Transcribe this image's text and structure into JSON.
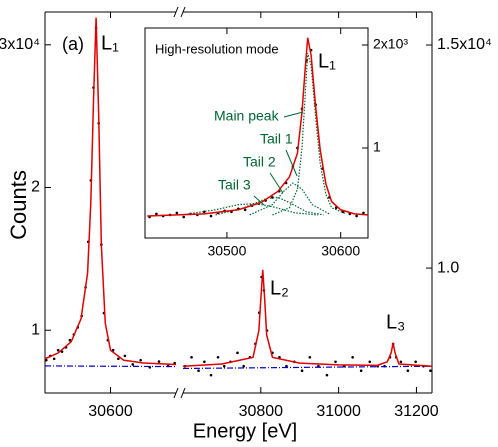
{
  "chart_data": [
    {
      "type": "line",
      "label": "(a)",
      "peak_labels": [
        "L₁",
        "L₂",
        "L₃"
      ],
      "xlabel": "Energy [eV]",
      "ylabel": "Counts",
      "panels": [
        {
          "xlim": [
            30500,
            30700
          ],
          "xticks": [
            30600
          ],
          "ylim": [
            0.56,
            3.23
          ],
          "yticks": [
            1,
            2,
            {
              "value": 3,
              "label": "3x10⁴"
            }
          ],
          "series": [
            {
              "style": "points",
              "color": "#000000",
              "x": [
                30502,
                30508,
                30514,
                30520,
                30526,
                30532,
                30538,
                30544,
                30550,
                30556,
                30562,
                30566,
                30570,
                30574,
                30578,
                30582,
                30586,
                30590,
                30596,
                30604,
                30612,
                30622,
                30634,
                30646,
                30660,
                30674,
                30688,
                30698
              ],
              "values": [
                0.79,
                0.82,
                0.8,
                0.86,
                0.85,
                0.88,
                0.93,
                0.97,
                1.02,
                1.1,
                1.3,
                1.62,
                2.05,
                2.7,
                3.12,
                2.45,
                1.6,
                1.12,
                0.93,
                0.86,
                0.8,
                0.82,
                0.76,
                0.79,
                0.74,
                0.78,
                0.75,
                0.77
              ]
            },
            {
              "style": "dashdot",
              "color": "#0000cc",
              "x": [
                30500,
                30700
              ],
              "values": [
                0.75,
                0.745
              ]
            },
            {
              "style": "solid",
              "color": "#e00000",
              "x": [
                30500,
                30520,
                30540,
                30555,
                30565,
                30570,
                30574,
                30578,
                30582,
                30586,
                30592,
                30600,
                30620,
                30650,
                30700
              ],
              "values": [
                0.8,
                0.84,
                0.92,
                1.08,
                1.4,
                1.9,
                2.6,
                3.19,
                2.5,
                1.6,
                1.05,
                0.86,
                0.79,
                0.77,
                0.76
              ]
            }
          ]
        },
        {
          "xlim": [
            30600,
            31240
          ],
          "xticks": [
            30800,
            31000,
            31200
          ],
          "ylim": [
            0.72,
            1.574
          ],
          "yticks": [
            {
              "value": 1.0,
              "label": "1.0"
            },
            {
              "value": 1.5,
              "label": "1.5x10⁴"
            }
          ],
          "series": [
            {
              "style": "points",
              "color": "#000000",
              "x": [
                30605,
                30622,
                30640,
                30655,
                30672,
                30690,
                30706,
                30722,
                30740,
                30756,
                30772,
                30786,
                30796,
                30802,
                30808,
                30816,
                30830,
                30848,
                30866,
                30886,
                30906,
                30926,
                30948,
                30970,
                30992,
                31014,
                31036,
                31058,
                31080,
                31100,
                31118,
                31132,
                31140,
                31148,
                31160,
                31178,
                31198,
                31218,
                31236
              ],
              "values": [
                0.78,
                0.8,
                0.77,
                0.79,
                0.76,
                0.8,
                0.78,
                0.79,
                0.81,
                0.78,
                0.8,
                0.83,
                0.9,
                0.98,
                0.95,
                0.86,
                0.81,
                0.8,
                0.78,
                0.79,
                0.77,
                0.8,
                0.78,
                0.76,
                0.79,
                0.78,
                0.8,
                0.77,
                0.79,
                0.78,
                0.78,
                0.8,
                0.83,
                0.8,
                0.79,
                0.77,
                0.79,
                0.78,
                0.77
              ]
            },
            {
              "style": "dashdot",
              "color": "#0000cc",
              "x": [
                30600,
                31240
              ],
              "values": [
                0.775,
                0.78
              ]
            },
            {
              "style": "solid",
              "color": "#e00000",
              "x": [
                30600,
                30700,
                30780,
                30795,
                30800,
                30805,
                30810,
                30815,
                30830,
                30900,
                31000,
                31100,
                31125,
                31135,
                31140,
                31145,
                31155,
                31240
              ],
              "values": [
                0.78,
                0.785,
                0.8,
                0.86,
                0.93,
                0.996,
                0.93,
                0.85,
                0.8,
                0.787,
                0.783,
                0.782,
                0.79,
                0.81,
                0.832,
                0.81,
                0.785,
                0.78
              ]
            }
          ]
        }
      ]
    },
    {
      "type": "line",
      "title": "High-resolution mode",
      "peak_label": "L₁",
      "annotations": [
        "Main peak",
        "Tail 1",
        "Tail 2",
        "Tail 3"
      ],
      "xlim": [
        30428,
        30624
      ],
      "xticks": [
        30500,
        30600
      ],
      "ylim": [
        0.126,
        2.165
      ],
      "yticks": [
        1,
        {
          "value": 2,
          "label": "2x10³"
        }
      ],
      "series": [
        {
          "style": "points",
          "color": "#000000",
          "x": [
            30432,
            30438,
            30444,
            30450,
            30456,
            30462,
            30468,
            30474,
            30480,
            30486,
            30492,
            30498,
            30504,
            30510,
            30516,
            30522,
            30528,
            30534,
            30540,
            30546,
            30552,
            30558,
            30562,
            30566,
            30570,
            30574,
            30578,
            30584,
            30590,
            30596,
            30602,
            30608,
            30614,
            30620
          ],
          "values": [
            0.33,
            0.36,
            0.34,
            0.35,
            0.37,
            0.33,
            0.36,
            0.35,
            0.38,
            0.34,
            0.37,
            0.39,
            0.38,
            0.41,
            0.4,
            0.44,
            0.46,
            0.49,
            0.52,
            0.58,
            0.66,
            0.82,
            1.0,
            1.38,
            1.85,
            1.95,
            1.42,
            0.8,
            0.52,
            0.42,
            0.38,
            0.36,
            0.34,
            0.37
          ]
        },
        {
          "style": "dotted",
          "color": "#006633",
          "x": [
            30540,
            30555,
            30562,
            30566,
            30569,
            30571,
            30574,
            30578,
            30582,
            30587,
            30592,
            30605
          ],
          "values": [
            0.35,
            0.42,
            0.6,
            1.0,
            1.55,
            1.92,
            1.8,
            1.3,
            0.85,
            0.55,
            0.42,
            0.36
          ]
        },
        {
          "style": "dotted",
          "color": "#006633",
          "x": [
            30520,
            30540,
            30550,
            30558,
            30566,
            30575,
            30590
          ],
          "values": [
            0.35,
            0.45,
            0.58,
            0.66,
            0.6,
            0.45,
            0.36
          ]
        },
        {
          "style": "dotted",
          "color": "#006633",
          "x": [
            30490,
            30515,
            30535,
            30545,
            30555,
            30570,
            30585
          ],
          "values": [
            0.35,
            0.42,
            0.51,
            0.52,
            0.47,
            0.38,
            0.35
          ]
        },
        {
          "style": "dotted",
          "color": "#006633",
          "x": [
            30460,
            30490,
            30510,
            30525,
            30540,
            30560,
            30580
          ],
          "values": [
            0.35,
            0.4,
            0.45,
            0.46,
            0.43,
            0.37,
            0.35
          ]
        },
        {
          "style": "solid",
          "color": "#e00000",
          "x": [
            30430,
            30480,
            30510,
            30530,
            30545,
            30555,
            30562,
            30566,
            30569,
            30571,
            30574,
            30578,
            30582,
            30587,
            30592,
            30600,
            30612,
            30624
          ],
          "values": [
            0.34,
            0.36,
            0.4,
            0.47,
            0.58,
            0.72,
            0.95,
            1.35,
            1.8,
            2.07,
            1.9,
            1.4,
            0.98,
            0.65,
            0.48,
            0.4,
            0.36,
            0.35
          ]
        }
      ]
    }
  ]
}
